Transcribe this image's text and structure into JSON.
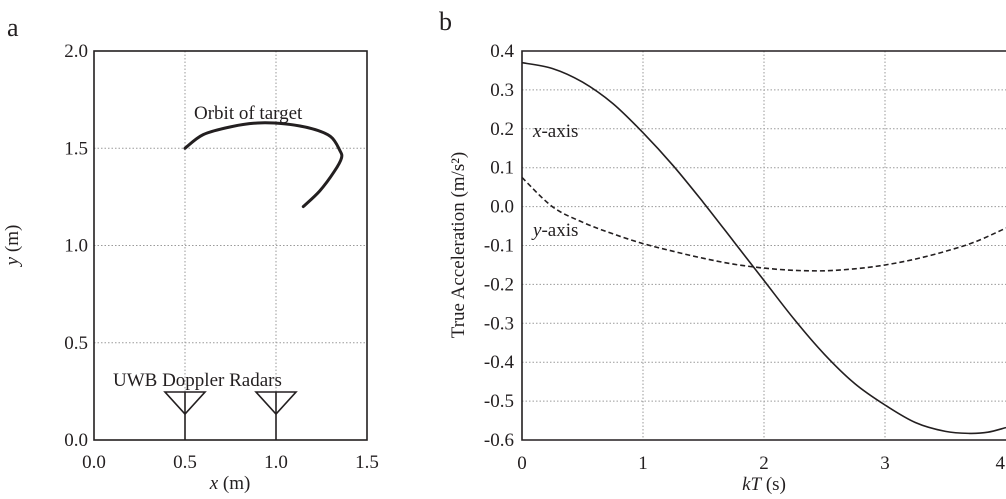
{
  "chart_data": [
    {
      "panel_label": "a",
      "type": "line",
      "xlabel_var": "x",
      "xlabel_unit": " (m)",
      "ylabel_var": "y",
      "ylabel_unit": " (m)",
      "xlim": [
        0,
        1.5
      ],
      "ylim": [
        0,
        2.0
      ],
      "xticks": [
        0,
        0.5,
        1.0,
        1.5
      ],
      "xtick_labels": [
        "0.0",
        "0.5",
        "1.0",
        "1.5"
      ],
      "yticks": [
        0,
        0.5,
        1.0,
        1.5,
        2.0
      ],
      "ytick_labels": [
        "0.0",
        "0.5",
        "1.0",
        "1.5",
        "2.0"
      ],
      "grid": true,
      "series": [
        {
          "name": "Orbit of target",
          "x": [
            0.5,
            0.6,
            0.75,
            0.9,
            1.05,
            1.2,
            1.3,
            1.35,
            1.36,
            1.32,
            1.24,
            1.15
          ],
          "y": [
            1.5,
            1.57,
            1.61,
            1.63,
            1.625,
            1.6,
            1.56,
            1.49,
            1.45,
            1.38,
            1.28,
            1.2
          ]
        }
      ],
      "radars": {
        "label": "UWB Doppler Radars",
        "positions": [
          0.5,
          1.0
        ]
      }
    },
    {
      "panel_label": "b",
      "type": "line",
      "xlabel_var": "kT",
      "xlabel_unit": " (s)",
      "ylabel": "True Acceleration (m/s²)",
      "xlim": [
        0,
        4
      ],
      "ylim": [
        -0.6,
        0.4
      ],
      "xticks": [
        0,
        1,
        2,
        3,
        4
      ],
      "xtick_labels": [
        "0",
        "1",
        "2",
        "3",
        "4"
      ],
      "yticks": [
        0.4,
        0.3,
        0.2,
        0.1,
        0.0,
        -0.1,
        -0.2,
        -0.3,
        -0.4,
        -0.5,
        -0.6
      ],
      "ytick_labels": [
        "0.4",
        "0.3",
        "0.2",
        "0.1",
        "0.0",
        "-0.1",
        "-0.2",
        "-0.3",
        "-0.4",
        "-0.5",
        "-0.6"
      ],
      "grid": true,
      "series": [
        {
          "name": "x-axis",
          "style": "solid",
          "x": [
            0,
            0.25,
            0.5,
            0.75,
            1.0,
            1.25,
            1.5,
            1.75,
            2.0,
            2.25,
            2.5,
            2.75,
            3.0,
            3.25,
            3.5,
            3.7,
            3.85,
            4.0
          ],
          "y": [
            0.37,
            0.355,
            0.32,
            0.265,
            0.19,
            0.105,
            0.01,
            -0.09,
            -0.19,
            -0.29,
            -0.38,
            -0.455,
            -0.51,
            -0.555,
            -0.578,
            -0.583,
            -0.58,
            -0.568
          ]
        },
        {
          "name": "y-axis",
          "style": "dashed",
          "x": [
            0,
            0.25,
            0.5,
            0.75,
            1.0,
            1.25,
            1.5,
            1.75,
            2.0,
            2.25,
            2.5,
            2.75,
            3.0,
            3.25,
            3.5,
            3.75,
            4.0
          ],
          "y": [
            0.075,
            0.0,
            -0.04,
            -0.07,
            -0.095,
            -0.115,
            -0.133,
            -0.148,
            -0.158,
            -0.164,
            -0.165,
            -0.16,
            -0.15,
            -0.135,
            -0.115,
            -0.09,
            -0.055
          ]
        }
      ],
      "series_labels": [
        {
          "var": "x",
          "suffix": "-axis"
        },
        {
          "var": "y",
          "suffix": "-axis"
        }
      ]
    }
  ]
}
